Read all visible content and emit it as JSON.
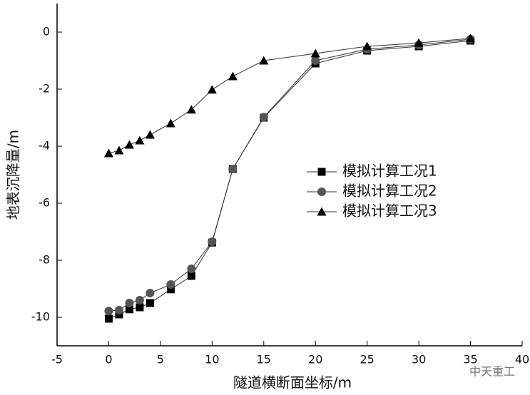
{
  "chart_data": {
    "type": "line",
    "x_label": "隧道横断面坐标/m",
    "y_label": "地表沉降量/m",
    "annotations": [
      "中天重工"
    ],
    "xlim": [
      -5,
      40
    ],
    "xticks": [
      -5,
      0,
      5,
      10,
      15,
      20,
      25,
      30,
      35,
      40
    ],
    "ylim": [
      -11,
      1
    ],
    "yticks": [
      -10,
      -8,
      -6,
      -4,
      -2,
      0
    ],
    "x": [
      0,
      1,
      2,
      3,
      4,
      6,
      8,
      10,
      12,
      15,
      20,
      25,
      30,
      35
    ],
    "legend": "center-right",
    "series": [
      {
        "name": "模拟计算工况1",
        "color": "#000000",
        "marker": "square",
        "values": [
          -10.05,
          -9.9,
          -9.72,
          -9.65,
          -9.5,
          -9.02,
          -8.55,
          -7.38,
          -4.8,
          -3.0,
          -1.1,
          -0.65,
          -0.5,
          -0.3
        ]
      },
      {
        "name": "模拟计算工况2",
        "color": "#555555",
        "marker": "circle",
        "values": [
          -9.78,
          -9.75,
          -9.5,
          -9.4,
          -9.15,
          -8.85,
          -8.3,
          -7.35,
          -4.8,
          -2.98,
          -1.0,
          -0.6,
          -0.45,
          -0.25
        ]
      },
      {
        "name": "模拟计算工况3",
        "color": "#000000",
        "marker": "triangle",
        "values": [
          -4.25,
          -4.15,
          -3.95,
          -3.8,
          -3.6,
          -3.2,
          -2.72,
          -2.02,
          -1.55,
          -1.0,
          -0.75,
          -0.5,
          -0.38,
          -0.22
        ]
      }
    ]
  }
}
